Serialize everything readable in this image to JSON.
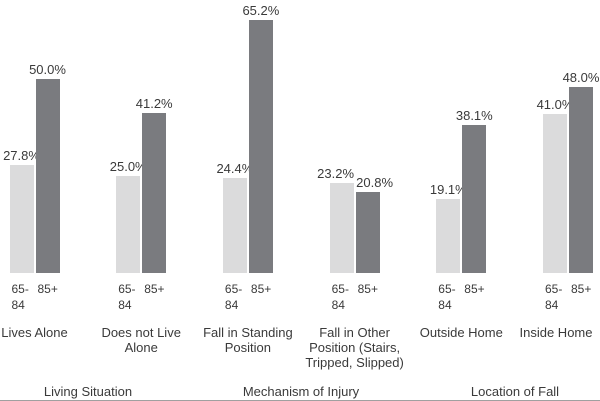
{
  "chart_data": {
    "type": "bar",
    "title": "",
    "categories": [
      "Lives Alone",
      "Does not Live Alone",
      "Fall in Standing Position",
      "Fall in Other Position (Stairs, Tripped, Slipped)",
      "Outside Home",
      "Inside Home"
    ],
    "series": [
      {
        "name": "65-84",
        "tick_label_lines": [
          "65-",
          "84"
        ],
        "color": "#dbdbdc",
        "values": [
          27.8,
          25.0,
          24.4,
          23.2,
          19.1,
          41.0
        ]
      },
      {
        "name": "85+",
        "tick_label_lines": [
          "85+"
        ],
        "color": "#7a7b7f",
        "values": [
          50.0,
          41.2,
          65.2,
          20.8,
          38.1,
          48.0
        ]
      }
    ],
    "groups": [
      {
        "label": "Living Situation",
        "category_indexes": [
          0,
          1
        ]
      },
      {
        "label": "Mechanism of Injury",
        "category_indexes": [
          2,
          3
        ]
      },
      {
        "label": "Location of Fall",
        "category_indexes": [
          4,
          5
        ]
      }
    ],
    "value_suffix": "%",
    "data_labels": true,
    "ylim": [
      0,
      70
    ],
    "grid": false,
    "legend": "none",
    "text_color": "#3a3a3a",
    "bar_colors": {
      "age_65_84": "#dbdbdc",
      "age_85_plus": "#7a7b7f"
    }
  }
}
